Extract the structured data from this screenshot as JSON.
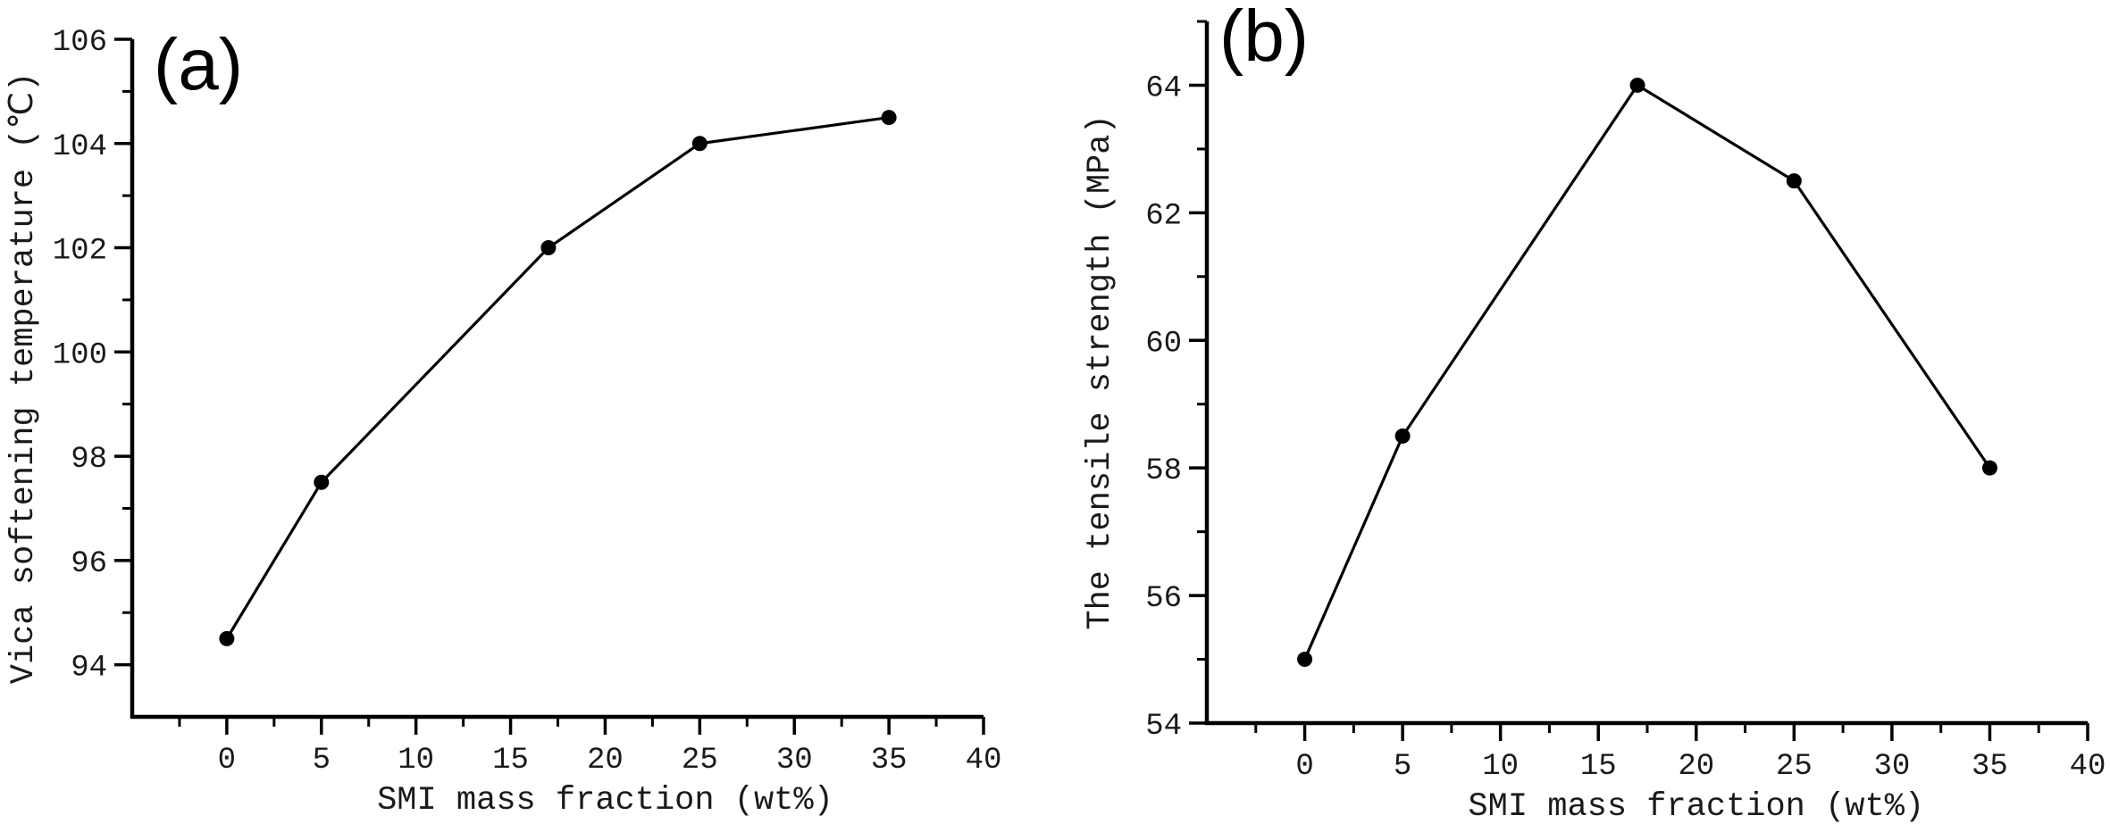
{
  "figure": {
    "background_color": "#ffffff",
    "ink_color": "#000000",
    "panels": [
      "(a)",
      "(b)"
    ]
  },
  "chart_data": [
    {
      "type": "line",
      "panel_label": "(a)",
      "title": "",
      "xlabel": "SMI mass fraction (wt%)",
      "ylabel": "Vica softening temperature (℃)",
      "x": [
        0,
        5,
        17,
        25,
        35
      ],
      "y": [
        94.5,
        97.5,
        102,
        104,
        104.5
      ],
      "xlim": [
        -5,
        40
      ],
      "ylim": [
        93,
        106
      ],
      "x_major_ticks": [
        0,
        5,
        10,
        15,
        20,
        25,
        30,
        35,
        40
      ],
      "x_minor_ticks": [
        -2.5,
        2.5,
        7.5,
        12.5,
        17.5,
        22.5,
        27.5,
        32.5,
        37.5
      ],
      "y_major_ticks": [
        94,
        96,
        98,
        100,
        102,
        104,
        106
      ],
      "y_minor_ticks": [
        95,
        97,
        99,
        101,
        103,
        105
      ],
      "grid": false,
      "legend": null,
      "marker": "circle",
      "marker_color": "#000000",
      "line_color": "#000000"
    },
    {
      "type": "line",
      "panel_label": "(b)",
      "title": "",
      "xlabel": "SMI mass fraction (wt%)",
      "ylabel": "The tensile strength (MPa)",
      "x": [
        0,
        5,
        17,
        25,
        35
      ],
      "y": [
        55,
        58.5,
        64,
        62.5,
        58
      ],
      "xlim": [
        -5,
        40
      ],
      "ylim": [
        54,
        65
      ],
      "x_major_ticks": [
        0,
        5,
        10,
        15,
        20,
        25,
        30,
        35,
        40
      ],
      "x_minor_ticks": [
        -2.5,
        2.5,
        7.5,
        12.5,
        17.5,
        22.5,
        27.5,
        32.5,
        37.5
      ],
      "y_major_ticks": [
        54,
        56,
        58,
        60,
        62,
        64
      ],
      "y_minor_ticks": [
        55,
        57,
        59,
        61,
        63,
        65
      ],
      "grid": false,
      "legend": null,
      "marker": "circle",
      "marker_color": "#000000",
      "line_color": "#000000"
    }
  ]
}
